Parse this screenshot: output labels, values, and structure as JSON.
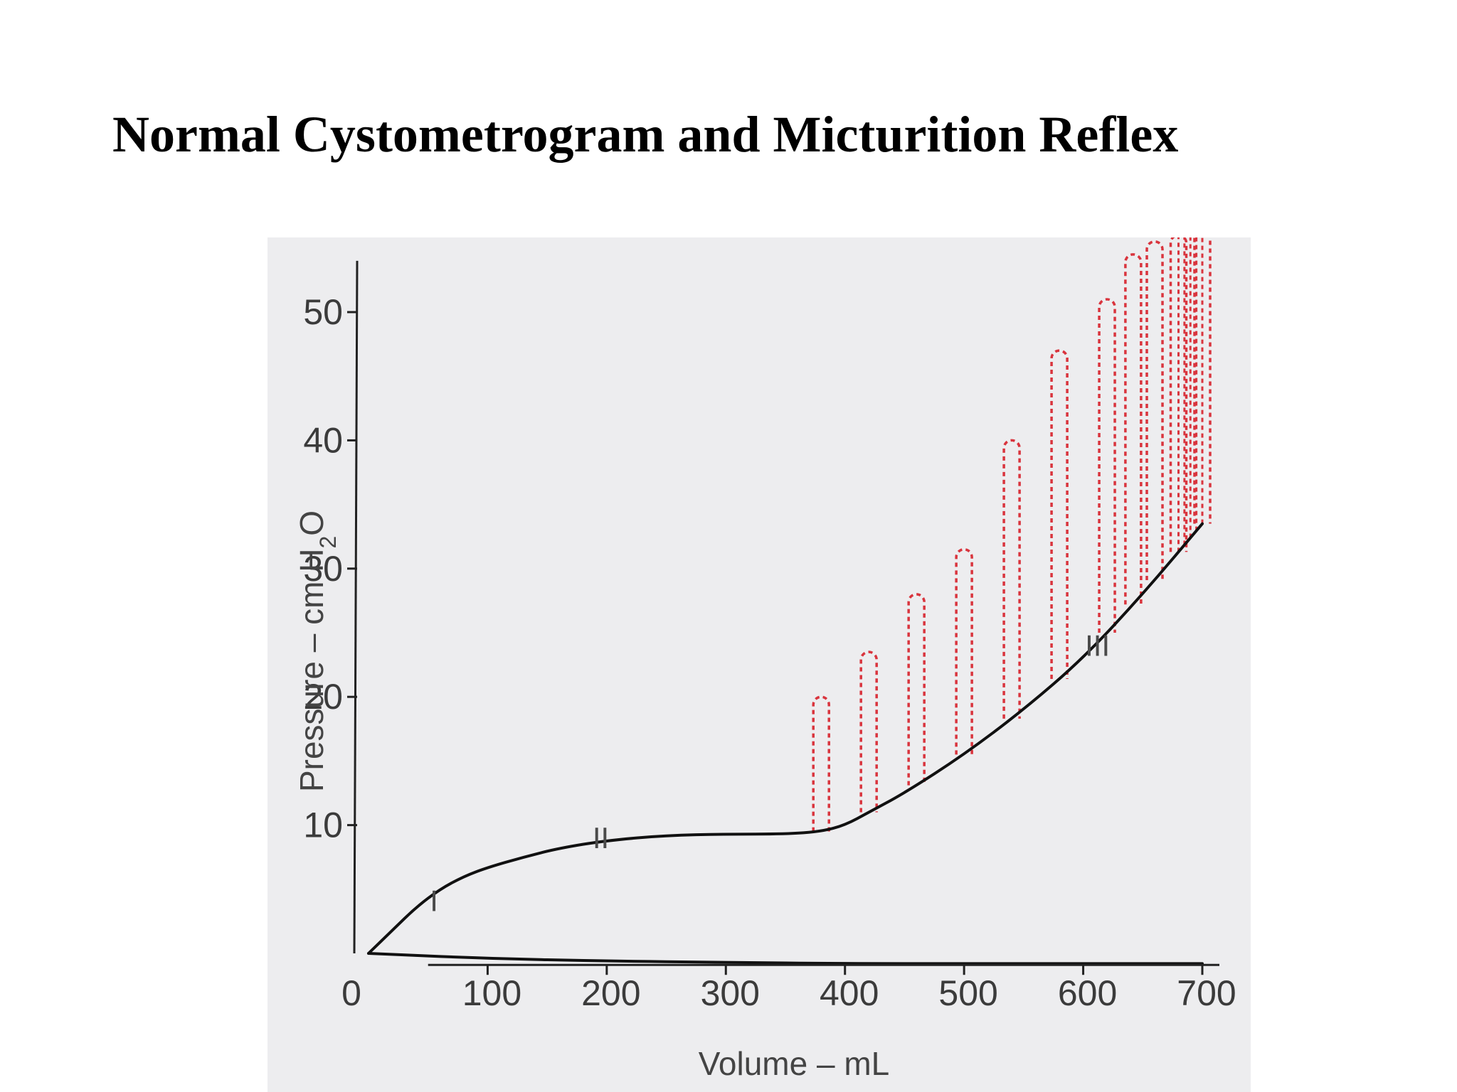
{
  "slide": {
    "title": "Normal Cystometrogram and Micturition Reflex"
  },
  "chart_data": {
    "type": "line",
    "title": "Normal Cystometrogram and Micturition Reflex",
    "xlabel": "Volume – mL",
    "ylabel": "Pressure – cm H2O",
    "ylabel_parts": {
      "main": "Pressure – cm H",
      "sub": "2",
      "tail": "O"
    },
    "xlim": [
      0,
      700
    ],
    "ylim": [
      0,
      50
    ],
    "x_ticks": [
      0,
      100,
      200,
      300,
      400,
      500,
      600,
      700
    ],
    "y_ticks": [
      10,
      20,
      30,
      40,
      50
    ],
    "grid": false,
    "series": [
      {
        "style": "solid",
        "color": "#111111",
        "x": [
          0,
          20,
          40,
          60,
          80,
          100,
          130,
          160,
          200,
          250,
          300,
          350,
          380,
          400,
          420,
          450,
          500,
          550,
          600,
          650,
          700
        ],
        "y": [
          0,
          1.8,
          3.6,
          5.0,
          6.0,
          6.7,
          7.5,
          8.2,
          8.8,
          9.2,
          9.3,
          9.3,
          9.5,
          10.0,
          11.0,
          12.5,
          15.5,
          19.0,
          23.0,
          28.0,
          33.5
        ]
      },
      {
        "style": "solid",
        "color": "#111111",
        "x": [
          0,
          100,
          200,
          300,
          400,
          500,
          600,
          700
        ],
        "y": [
          0,
          -0.4,
          -0.6,
          -0.7,
          -0.8,
          -0.8,
          -0.8,
          -0.8
        ]
      }
    ],
    "reflex_waves": {
      "color": "#d9343d",
      "style": "dashed",
      "peaks": [
        {
          "x": 380,
          "y": 20.0
        },
        {
          "x": 420,
          "y": 23.5
        },
        {
          "x": 460,
          "y": 28.0
        },
        {
          "x": 500,
          "y": 31.5
        },
        {
          "x": 540,
          "y": 40.0
        },
        {
          "x": 580,
          "y": 47.0
        },
        {
          "x": 620,
          "y": 51.0
        },
        {
          "x": 642,
          "y": 54.5
        },
        {
          "x": 660,
          "y": 55.5
        },
        {
          "x": 680,
          "y": 56.0
        },
        {
          "x": 700,
          "y": 57.0
        }
      ]
    },
    "annotations": [
      {
        "text": "I",
        "x": 55,
        "y": 3.3
      },
      {
        "text": "II",
        "x": 195,
        "y": 8.2
      },
      {
        "text": "III",
        "x": 612,
        "y": 23.2
      }
    ]
  }
}
